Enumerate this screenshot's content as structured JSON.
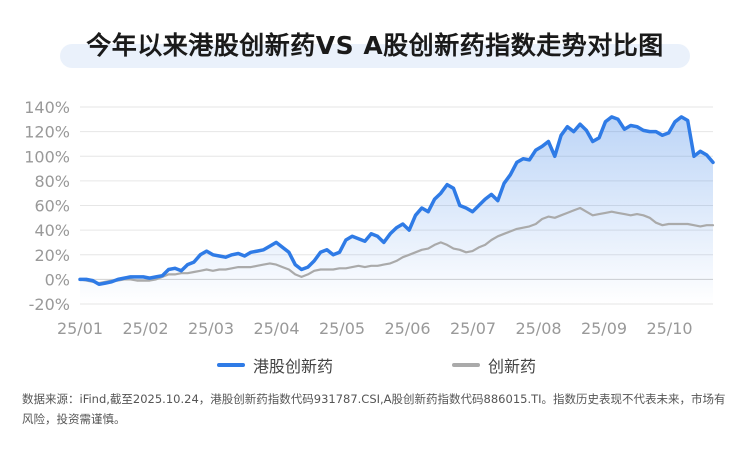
{
  "title": "今年以来港股创新药VS A股创新药指数走势对比图",
  "source_note": "数据来源：iFind,截至2025.10.24，港股创新药指数代码931787.CSI,A股创新药指数代码886015.TI。指数历史表现不代表未来，市场有风险，投资需谨慎。",
  "colors": {
    "hk": "#2f7be6",
    "a": "#aaaaaa",
    "grid": "#e6e6e6",
    "title_bg": "#eaf1fb"
  },
  "chart_data": {
    "type": "line",
    "ylim": [
      -20,
      140
    ],
    "yticks": [
      "-20%",
      "0%",
      "20%",
      "40%",
      "60%",
      "80%",
      "100%",
      "120%",
      "140%"
    ],
    "yvals": [
      -20,
      0,
      20,
      40,
      60,
      80,
      100,
      120,
      140
    ],
    "xticks": [
      "25/01",
      "25/02",
      "25/03",
      "25/04",
      "25/05",
      "25/06",
      "25/07",
      "25/08",
      "25/09",
      "25/10"
    ],
    "grid": "horizontal",
    "legend_position": "bottom",
    "series": [
      {
        "name": "港股创新药",
        "values": [
          0,
          0,
          -1,
          -4,
          -3,
          -2,
          0,
          1,
          2,
          2,
          2,
          1,
          2,
          3,
          8,
          9,
          7,
          12,
          14,
          20,
          23,
          20,
          19,
          18,
          20,
          21,
          19,
          22,
          23,
          24,
          27,
          30,
          26,
          22,
          12,
          8,
          10,
          15,
          22,
          24,
          20,
          22,
          32,
          35,
          33,
          31,
          37,
          35,
          30,
          37,
          42,
          45,
          40,
          52,
          58,
          55,
          65,
          70,
          77,
          74,
          60,
          58,
          55,
          60,
          65,
          69,
          64,
          78,
          85,
          95,
          98,
          97,
          105,
          108,
          112,
          100,
          117,
          124,
          120,
          126,
          121,
          112,
          115,
          128,
          132,
          130,
          122,
          125,
          124,
          121,
          120,
          120,
          117,
          119,
          128,
          132,
          129,
          100,
          104,
          101,
          95
        ]
      },
      {
        "name": "创新药",
        "values": [
          0,
          -1,
          -2,
          -3,
          -2,
          -1,
          -1,
          0,
          0,
          -1,
          -1,
          -1,
          0,
          2,
          4,
          4,
          5,
          5,
          6,
          7,
          8,
          7,
          8,
          8,
          9,
          10,
          10,
          10,
          11,
          12,
          13,
          12,
          10,
          8,
          4,
          2,
          4,
          7,
          8,
          8,
          8,
          9,
          9,
          10,
          11,
          10,
          11,
          11,
          12,
          13,
          15,
          18,
          20,
          22,
          24,
          25,
          28,
          30,
          28,
          25,
          24,
          22,
          23,
          26,
          28,
          32,
          35,
          37,
          39,
          41,
          42,
          43,
          45,
          49,
          51,
          50,
          52,
          54,
          56,
          58,
          55,
          52,
          53,
          54,
          55,
          54,
          53,
          52,
          53,
          52,
          50,
          46,
          44,
          45,
          45,
          45,
          45,
          44,
          43,
          44,
          44
        ]
      }
    ]
  }
}
